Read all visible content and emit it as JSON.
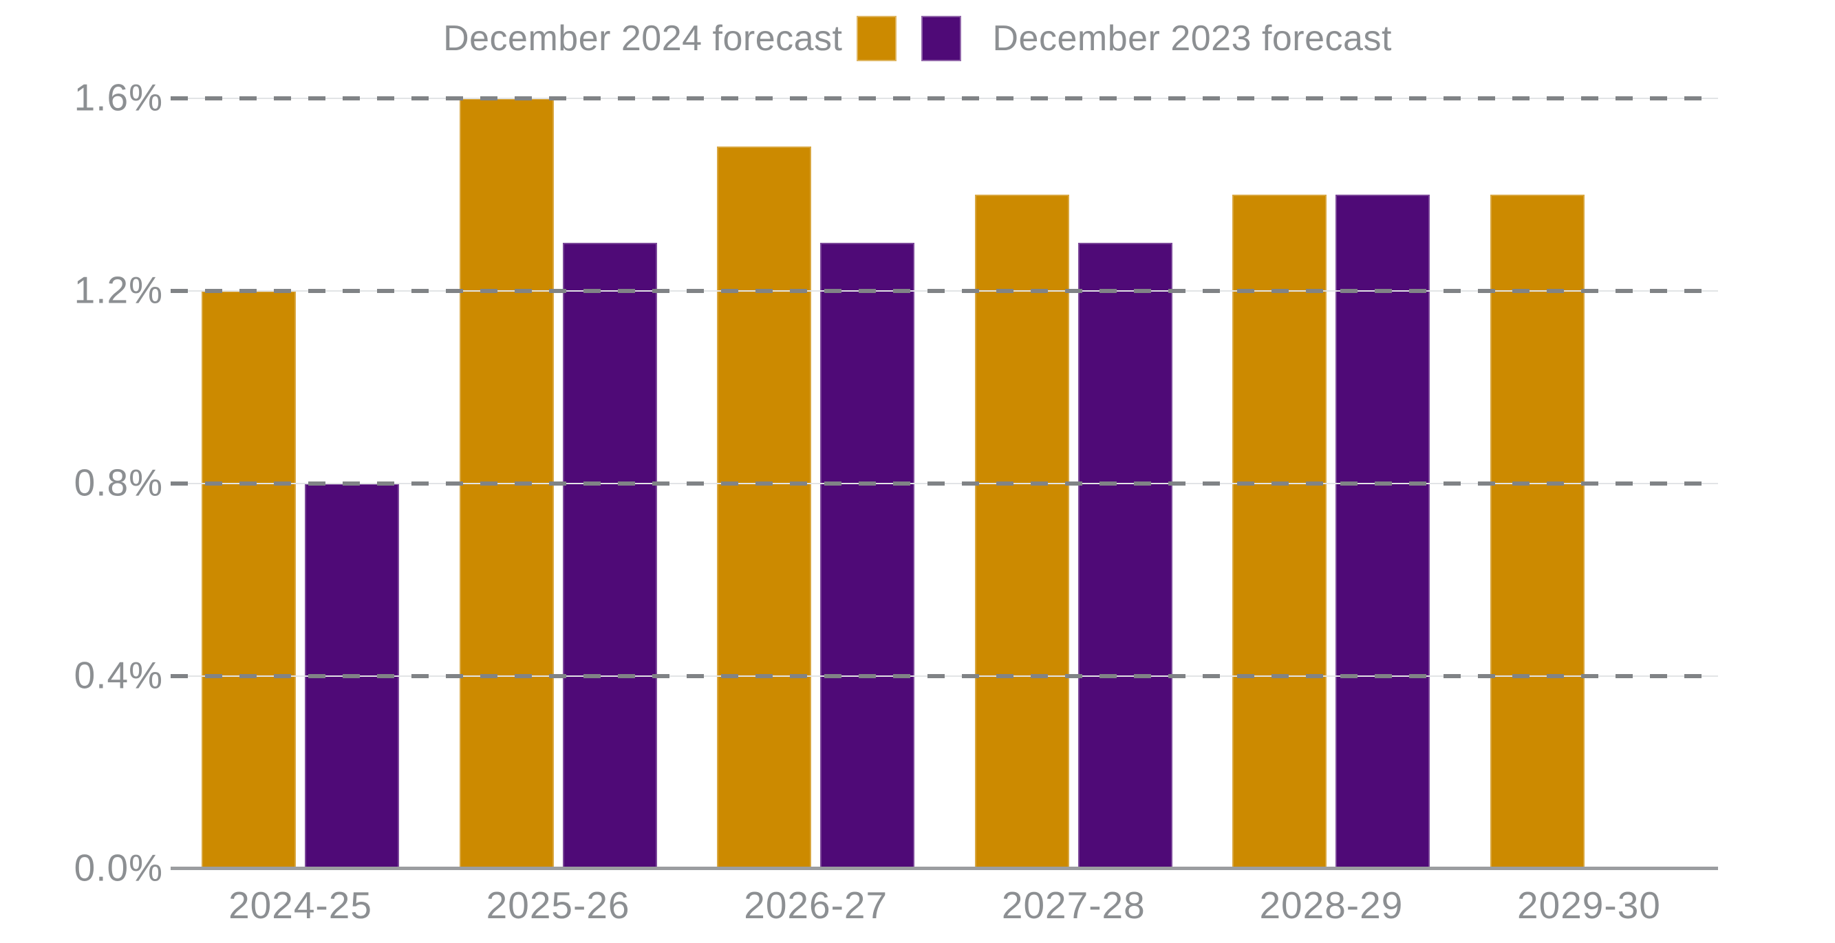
{
  "chart_data": {
    "type": "bar",
    "title": "",
    "xlabel": "",
    "ylabel": "",
    "categories": [
      "2024-25",
      "2025-26",
      "2026-27",
      "2027-28",
      "2028-29",
      "2029-30"
    ],
    "series": [
      {
        "name": "December 2024 forecast",
        "color": "#CC8A00",
        "values": [
          1.2,
          1.6,
          1.5,
          1.4,
          1.4,
          1.4
        ]
      },
      {
        "name": "December 2023 forecast",
        "color": "#4F0A77",
        "values": [
          0.8,
          1.3,
          1.3,
          1.3,
          1.4,
          null
        ]
      }
    ],
    "unit": "%",
    "ylim": [
      0,
      1.6
    ],
    "yticks": [
      "1.6%",
      "1.2%",
      "0.8%",
      "0.4%",
      "0.0%"
    ],
    "grid": "horizontal-dashed",
    "legend_position": "top-center"
  },
  "colors": {
    "background": "#FFFFFF",
    "text": "#8C8F92",
    "grid_dash": "#808386",
    "grid_hairline": "#E2E4E6",
    "baseline": "#9B9DA0"
  }
}
